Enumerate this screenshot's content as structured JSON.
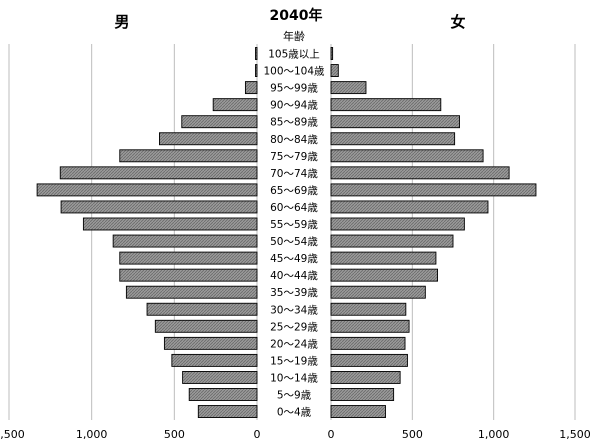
{
  "chart_data": {
    "type": "bar",
    "orientation": "horizontal",
    "title": "2040年",
    "category_header": "年齢",
    "left_label": "男",
    "right_label": "女",
    "categories": [
      "105歳以上",
      "100〜104歳",
      "95〜99歳",
      "90〜94歳",
      "85〜89歳",
      "80〜84歳",
      "75〜79歳",
      "70〜74歳",
      "65〜69歳",
      "60〜64歳",
      "55〜59歳",
      "50〜54歳",
      "45〜49歳",
      "40〜44歳",
      "35〜39歳",
      "30〜34歳",
      "25〜29歳",
      "20〜24歳",
      "15〜19歳",
      "10〜14歳",
      "5〜9歳",
      "0〜4歳"
    ],
    "series": [
      {
        "name": "男",
        "values": [
          5,
          8,
          70,
          265,
          455,
          590,
          830,
          1190,
          1330,
          1185,
          1050,
          870,
          830,
          830,
          790,
          665,
          615,
          560,
          515,
          450,
          410,
          355
        ]
      },
      {
        "name": "女",
        "values": [
          10,
          45,
          215,
          675,
          790,
          760,
          935,
          1095,
          1260,
          965,
          820,
          750,
          645,
          655,
          580,
          460,
          480,
          455,
          470,
          425,
          385,
          335
        ]
      }
    ],
    "xlim": [
      0,
      1500
    ],
    "x_ticks_left": [
      "1,500",
      "1,000",
      "500",
      "0"
    ],
    "x_ticks_right": [
      "0",
      "500",
      "1,000",
      "1,500"
    ],
    "grid": true
  }
}
